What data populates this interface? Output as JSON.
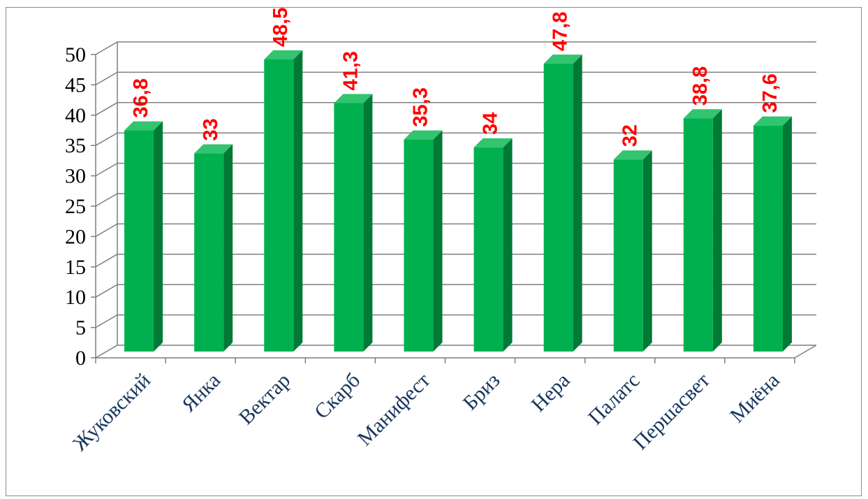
{
  "chart_data": {
    "type": "bar",
    "title": "",
    "xlabel": "",
    "ylabel": "",
    "ylim": [
      0,
      50
    ],
    "yticks": [
      "0",
      "5",
      "10",
      "15",
      "20",
      "25",
      "30",
      "35",
      "40",
      "45",
      "50"
    ],
    "grid": true,
    "legend": "none",
    "categories": [
      "Жуковский",
      "Янка",
      "Вектар",
      "Скарб",
      "Манифест",
      "Бриз",
      "Нера",
      "Палатс",
      "Першасвет",
      "Миёна"
    ],
    "values": [
      36.8,
      33,
      48.5,
      41.3,
      35.3,
      34,
      47.8,
      32,
      38.8,
      37.6
    ],
    "data_labels": [
      "36,8",
      "33",
      "48,5",
      "41,3",
      "35,3",
      "34",
      "47,8",
      "32",
      "38,8",
      "37,6"
    ],
    "colors": {
      "bar_front": "#00b04f",
      "bar_side": "#007a35",
      "bar_top": "#33c46f",
      "grid": "#7f7f7f",
      "data_label": "#ff0000",
      "category_label": "#17365d",
      "axis_label": "#000000"
    }
  }
}
